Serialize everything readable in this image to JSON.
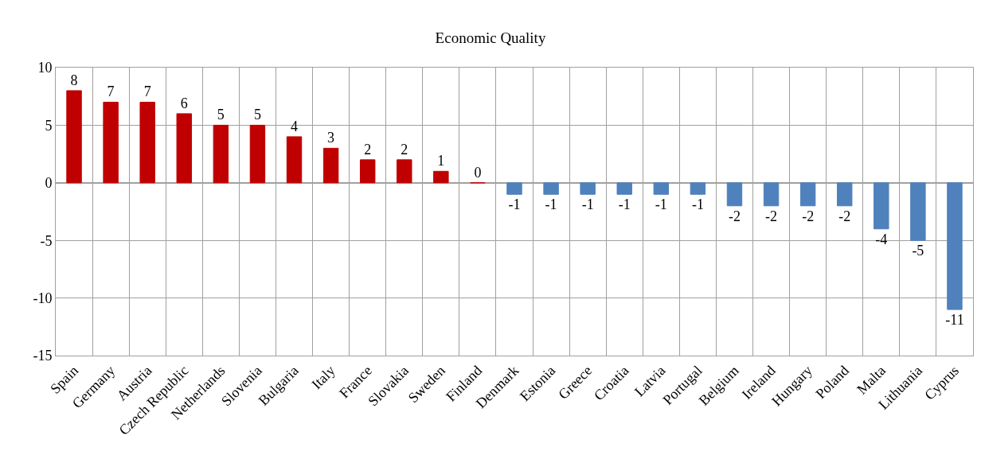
{
  "chart_data": {
    "type": "bar",
    "title": "Economic Quality",
    "categories": [
      "Spain",
      "Germany",
      "Austria",
      "Czech Republic",
      "Netherlands",
      "Slovenia",
      "Bulgaria",
      "Italy",
      "France",
      "Slovakia",
      "Sweden",
      "Finland",
      "Denmark",
      "Estonia",
      "Greece",
      "Croatia",
      "Latvia",
      "Portugal",
      "Belgium",
      "Ireland",
      "Hungary",
      "Poland",
      "Malta",
      "Lithuania",
      "Cyprus"
    ],
    "values": [
      8,
      7,
      7,
      6,
      5,
      5,
      4,
      3,
      2,
      2,
      1,
      0,
      -1,
      -1,
      -1,
      -1,
      -1,
      -1,
      -2,
      -2,
      -2,
      -2,
      -4,
      -5,
      -11
    ],
    "colors": [
      "#c00000",
      "#c00000",
      "#c00000",
      "#c00000",
      "#c00000",
      "#c00000",
      "#c00000",
      "#c00000",
      "#c00000",
      "#c00000",
      "#c00000",
      "#c00000",
      "#4f81bd",
      "#4f81bd",
      "#4f81bd",
      "#4f81bd",
      "#4f81bd",
      "#4f81bd",
      "#4f81bd",
      "#4f81bd",
      "#4f81bd",
      "#4f81bd",
      "#4f81bd",
      "#4f81bd",
      "#4f81bd"
    ],
    "ylim": [
      -15,
      10
    ],
    "yticks": [
      -15,
      -10,
      -5,
      0,
      5,
      10
    ],
    "grid": true,
    "data_labels": true
  }
}
